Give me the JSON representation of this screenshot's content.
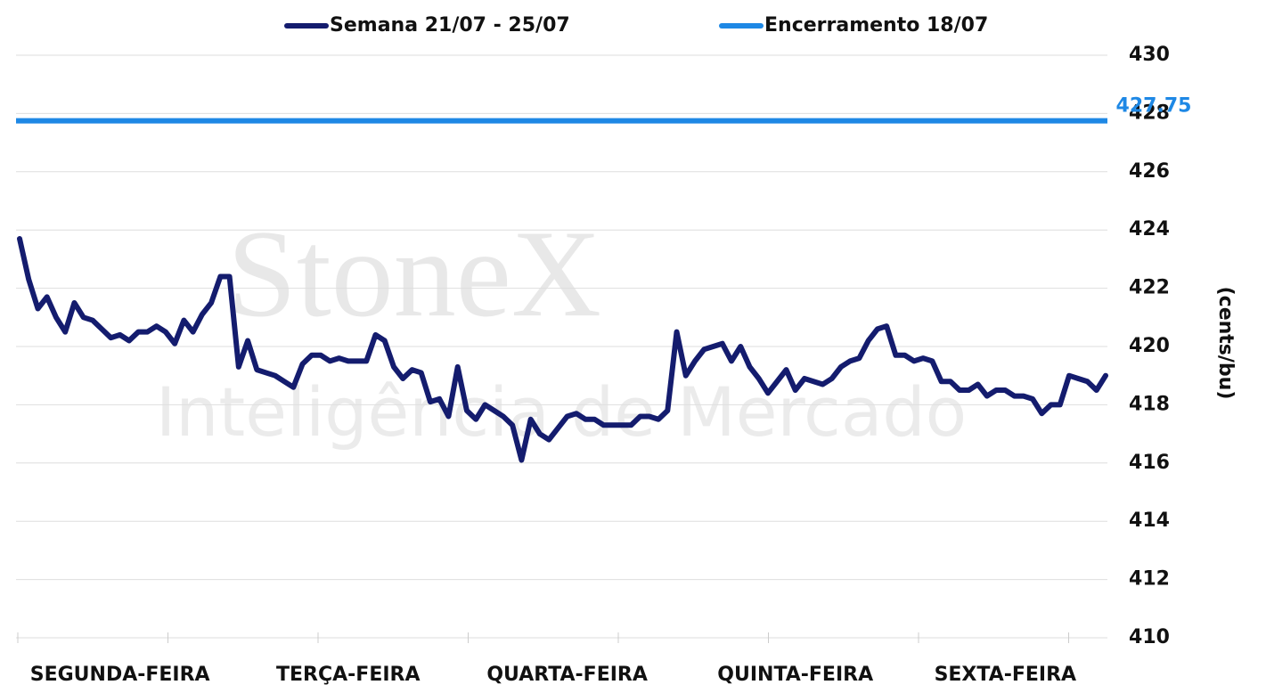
{
  "chart_data": {
    "type": "line",
    "watermark": {
      "brand": "StoneX",
      "subtitle": "Inteligência de Mercado"
    },
    "y_label": "(cents/bu)",
    "categories": [
      null,
      null,
      null,
      null,
      null,
      null,
      null,
      null,
      null,
      null,
      null,
      "SEGUNDA-FEIRA",
      null,
      null,
      null,
      null,
      null,
      null,
      null,
      null,
      null,
      null,
      null,
      null,
      null,
      null,
      null,
      null,
      null,
      null,
      null,
      null,
      null,
      null,
      null,
      null,
      "TERÇA-FEIRA",
      null,
      null,
      null,
      null,
      null,
      null,
      null,
      null,
      null,
      null,
      null,
      null,
      null,
      null,
      null,
      null,
      null,
      null,
      null,
      null,
      null,
      null,
      null,
      "QUARTA-FEIRA",
      null,
      null,
      null,
      null,
      null,
      null,
      null,
      null,
      null,
      null,
      null,
      null,
      null,
      null,
      null,
      null,
      null,
      null,
      null,
      null,
      null,
      null,
      null,
      null,
      "QUINTA-FEIRA",
      null,
      null,
      null,
      null,
      null,
      null,
      null,
      null,
      null,
      null,
      null,
      null,
      null,
      null,
      null,
      null,
      null,
      null,
      null,
      null,
      null,
      null,
      "SEXTA-FEIRA",
      null,
      null,
      null,
      null,
      null,
      null,
      null,
      null,
      null,
      null,
      null
    ],
    "series": [
      {
        "name": "Semana 21/07 - 25/07",
        "color": "#141c6e",
        "values": [
          423.7,
          422.3,
          421.3,
          421.7,
          421.0,
          420.5,
          421.5,
          421.0,
          420.9,
          420.6,
          420.3,
          420.4,
          420.2,
          420.5,
          420.5,
          420.7,
          420.5,
          420.1,
          420.9,
          420.5,
          421.1,
          421.5,
          422.4,
          422.4,
          419.3,
          420.2,
          419.2,
          419.1,
          419.0,
          418.8,
          418.6,
          419.4,
          419.7,
          419.7,
          419.5,
          419.6,
          419.5,
          419.5,
          419.5,
          420.4,
          420.2,
          419.3,
          418.9,
          419.2,
          419.1,
          418.1,
          418.2,
          417.6,
          419.3,
          417.8,
          417.5,
          418.0,
          417.8,
          417.6,
          417.3,
          416.1,
          417.5,
          417.0,
          416.8,
          417.2,
          417.6,
          417.7,
          417.5,
          417.5,
          417.3,
          417.3,
          417.3,
          417.3,
          417.6,
          417.6,
          417.5,
          417.8,
          420.5,
          419.0,
          419.5,
          419.9,
          420.0,
          420.1,
          419.5,
          420.0,
          419.3,
          418.9,
          418.4,
          418.8,
          419.2,
          418.5,
          418.9,
          418.8,
          418.7,
          418.9,
          419.3,
          419.5,
          419.6,
          420.2,
          420.6,
          420.7,
          419.7,
          419.7,
          419.5,
          419.6,
          419.5,
          418.8,
          418.8,
          418.5,
          418.5,
          418.7,
          418.3,
          418.5,
          418.5,
          418.3,
          418.3,
          418.2,
          417.7,
          418.0,
          418.0,
          419.0,
          418.9,
          418.8,
          418.5,
          419.0
        ]
      }
    ],
    "reference": {
      "name": "Encerramento 18/07",
      "color": "#1e88e5",
      "value": 427.75
    },
    "ylim": [
      410,
      430
    ],
    "yticks": [
      410,
      412,
      414,
      416,
      418,
      420,
      422,
      424,
      426,
      428,
      430
    ],
    "grid": true
  }
}
